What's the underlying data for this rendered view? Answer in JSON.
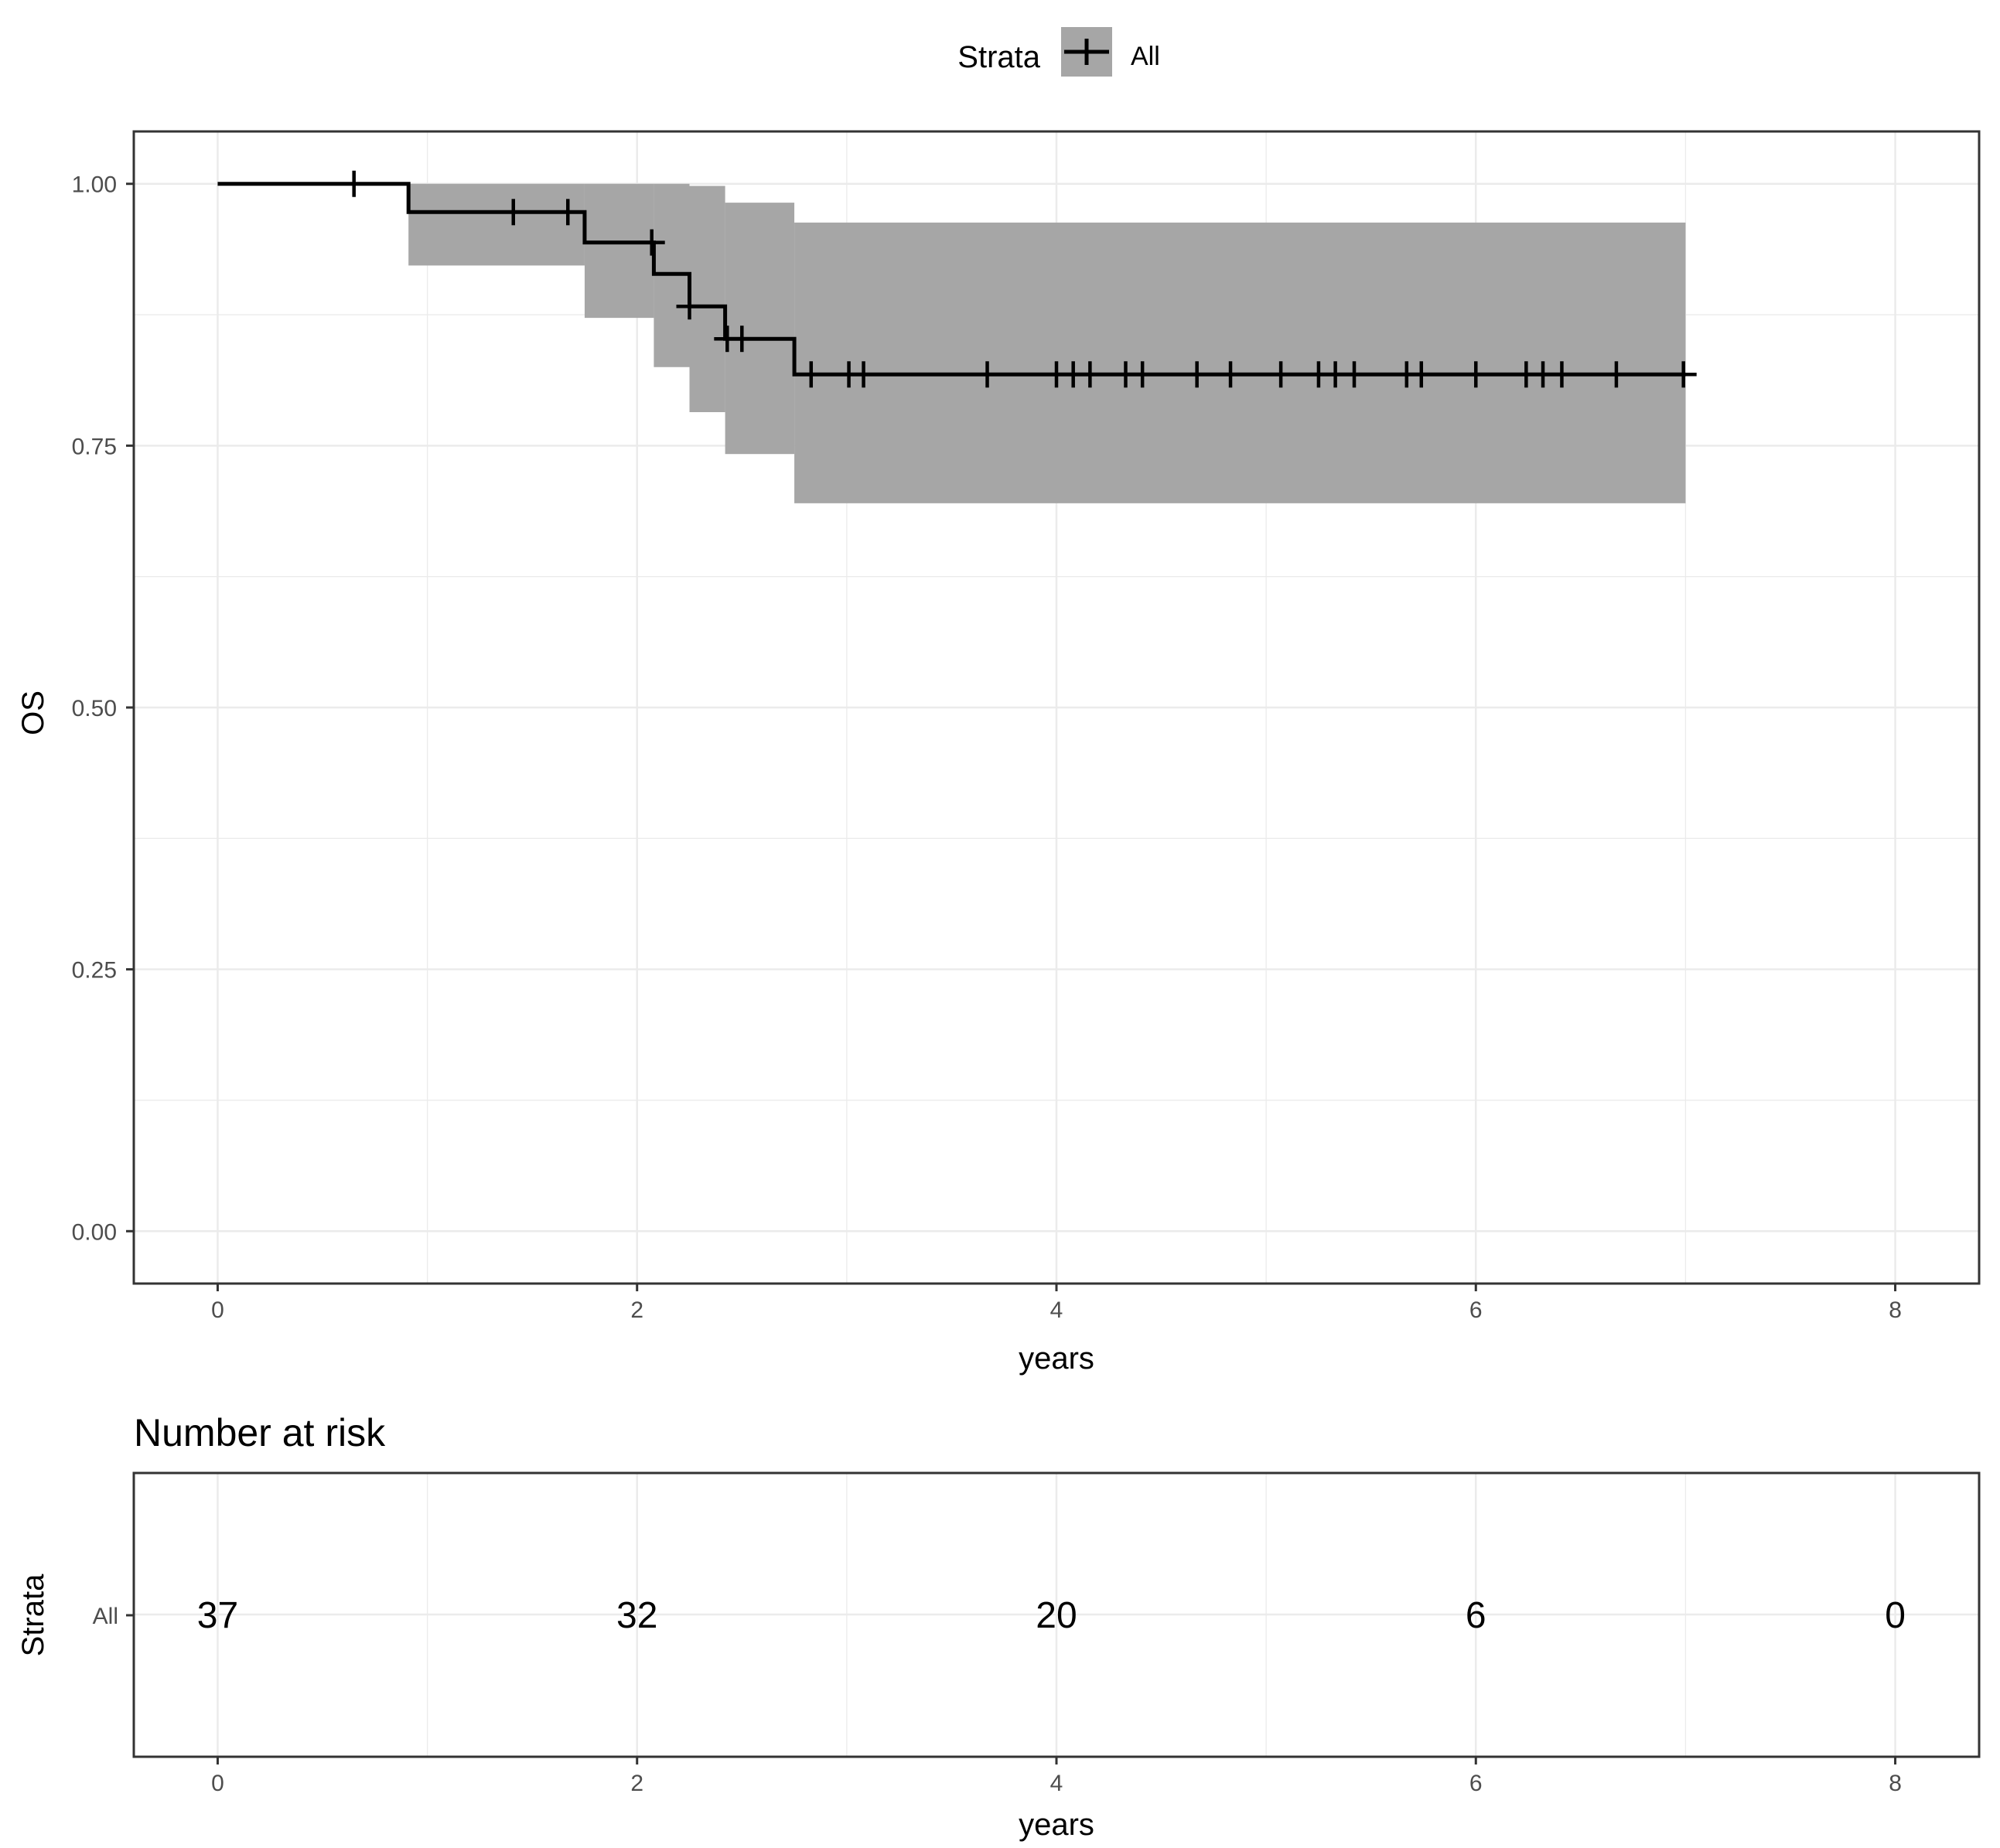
{
  "chart_data": {
    "type": "line",
    "subtype": "kaplan-meier survival curve with number-at-risk table",
    "legend": {
      "title": "Strata",
      "entries": [
        "All"
      ],
      "placement": "top"
    },
    "main_plot": {
      "xlabel": "years",
      "ylabel": "OS",
      "xlim": [
        -0.4,
        8.4
      ],
      "ylim": [
        -0.05,
        1.05
      ],
      "x_ticks": [
        "0",
        "2",
        "4",
        "6",
        "8"
      ],
      "x_tick_values": [
        0,
        2,
        4,
        6,
        8
      ],
      "y_ticks": [
        "0.00",
        "0.25",
        "0.50",
        "0.75",
        "1.00"
      ],
      "y_tick_values": [
        0,
        0.25,
        0.5,
        0.75,
        1.0
      ],
      "grid": true,
      "series": [
        {
          "name": "All",
          "color": "#000000",
          "ci_color": "#a6a6a6",
          "steps": [
            {
              "x": 0,
              "y": 1.0,
              "lower": 1.0,
              "upper": 1.0
            },
            {
              "x": 0.91,
              "y": 0.973,
              "lower": 0.922,
              "upper": 1.0
            },
            {
              "x": 1.75,
              "y": 0.944,
              "lower": 0.872,
              "upper": 1.0
            },
            {
              "x": 2.08,
              "y": 0.914,
              "lower": 0.825,
              "upper": 1.0
            },
            {
              "x": 2.25,
              "y": 0.883,
              "lower": 0.782,
              "upper": 0.998
            },
            {
              "x": 2.42,
              "y": 0.852,
              "lower": 0.742,
              "upper": 0.982
            },
            {
              "x": 2.75,
              "y": 0.818,
              "lower": 0.695,
              "upper": 0.963
            }
          ],
          "end_x": 7.0,
          "censor_times": [
            0.65,
            1.41,
            1.67,
            2.07,
            2.25,
            2.43,
            2.5,
            2.83,
            3.01,
            3.08,
            3.67,
            4.0,
            4.08,
            4.16,
            4.33,
            4.41,
            4.67,
            4.83,
            5.07,
            5.25,
            5.33,
            5.42,
            5.67,
            5.74,
            6.0,
            6.24,
            6.32,
            6.41,
            6.67,
            6.99
          ]
        }
      ]
    },
    "risk_table": {
      "title": "Number at risk",
      "ylabel": "Strata",
      "xlabel": "years",
      "row_label": "All",
      "x_ticks": [
        "0",
        "2",
        "4",
        "6",
        "8"
      ],
      "times": [
        0,
        2,
        4,
        6,
        8
      ],
      "values": [
        "37",
        "32",
        "20",
        "6",
        "0"
      ]
    }
  }
}
